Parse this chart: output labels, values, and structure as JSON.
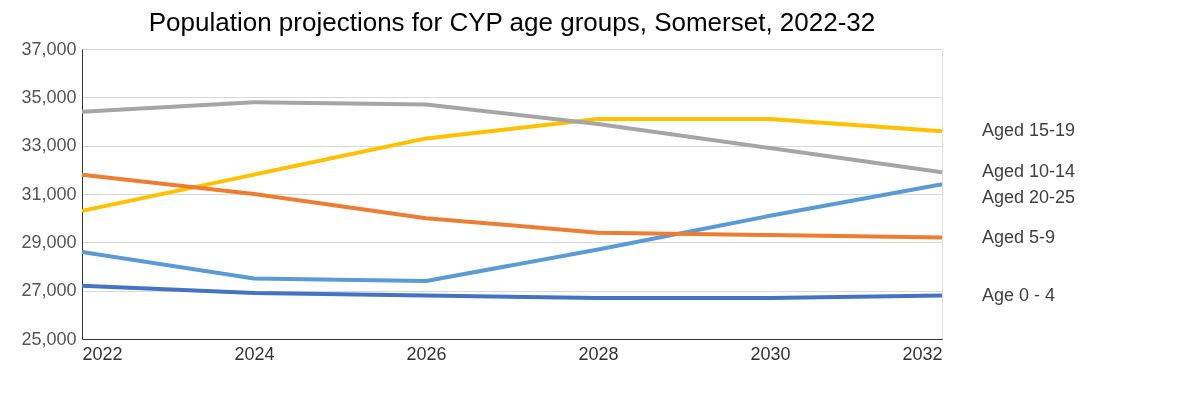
{
  "chart_data": {
    "type": "line",
    "title": "Population projections for CYP age groups, Somerset, 2022-32",
    "x": [
      2022,
      2024,
      2026,
      2028,
      2030,
      2032
    ],
    "series": [
      {
        "name": "Aged 15-19",
        "color": "#ffc000",
        "values": [
          30300,
          31800,
          33300,
          34100,
          34100,
          33600
        ]
      },
      {
        "name": "Aged 10-14",
        "color": "#a5a5a5",
        "values": [
          34400,
          34800,
          34700,
          33900,
          32900,
          31900
        ]
      },
      {
        "name": "Aged 20-25",
        "color": "#5b9bd5",
        "values": [
          28600,
          27500,
          27400,
          28700,
          30100,
          31400
        ]
      },
      {
        "name": "Aged 5-9",
        "color": "#ed7d31",
        "values": [
          31800,
          31000,
          30000,
          29400,
          29300,
          29200
        ]
      },
      {
        "name": "Age 0 - 4",
        "color": "#4472c4",
        "values": [
          27200,
          26900,
          26800,
          26700,
          26700,
          26800
        ]
      }
    ],
    "xlim": [
      2022,
      2032
    ],
    "xticks": [
      2022,
      2024,
      2026,
      2028,
      2030,
      2032
    ],
    "ylim": [
      25000,
      37000
    ],
    "yticks": [
      {
        "value": 25000,
        "label": "25,000"
      },
      {
        "value": 27000,
        "label": "27,000"
      },
      {
        "value": 29000,
        "label": "29,000"
      },
      {
        "value": 31000,
        "label": "31,000"
      },
      {
        "value": 33000,
        "label": "33,000"
      },
      {
        "value": 35000,
        "label": "35,000"
      },
      {
        "value": 37000,
        "label": "37,000"
      }
    ],
    "grid": "y",
    "legend": "right",
    "marker": "none",
    "line_style": "solid"
  }
}
